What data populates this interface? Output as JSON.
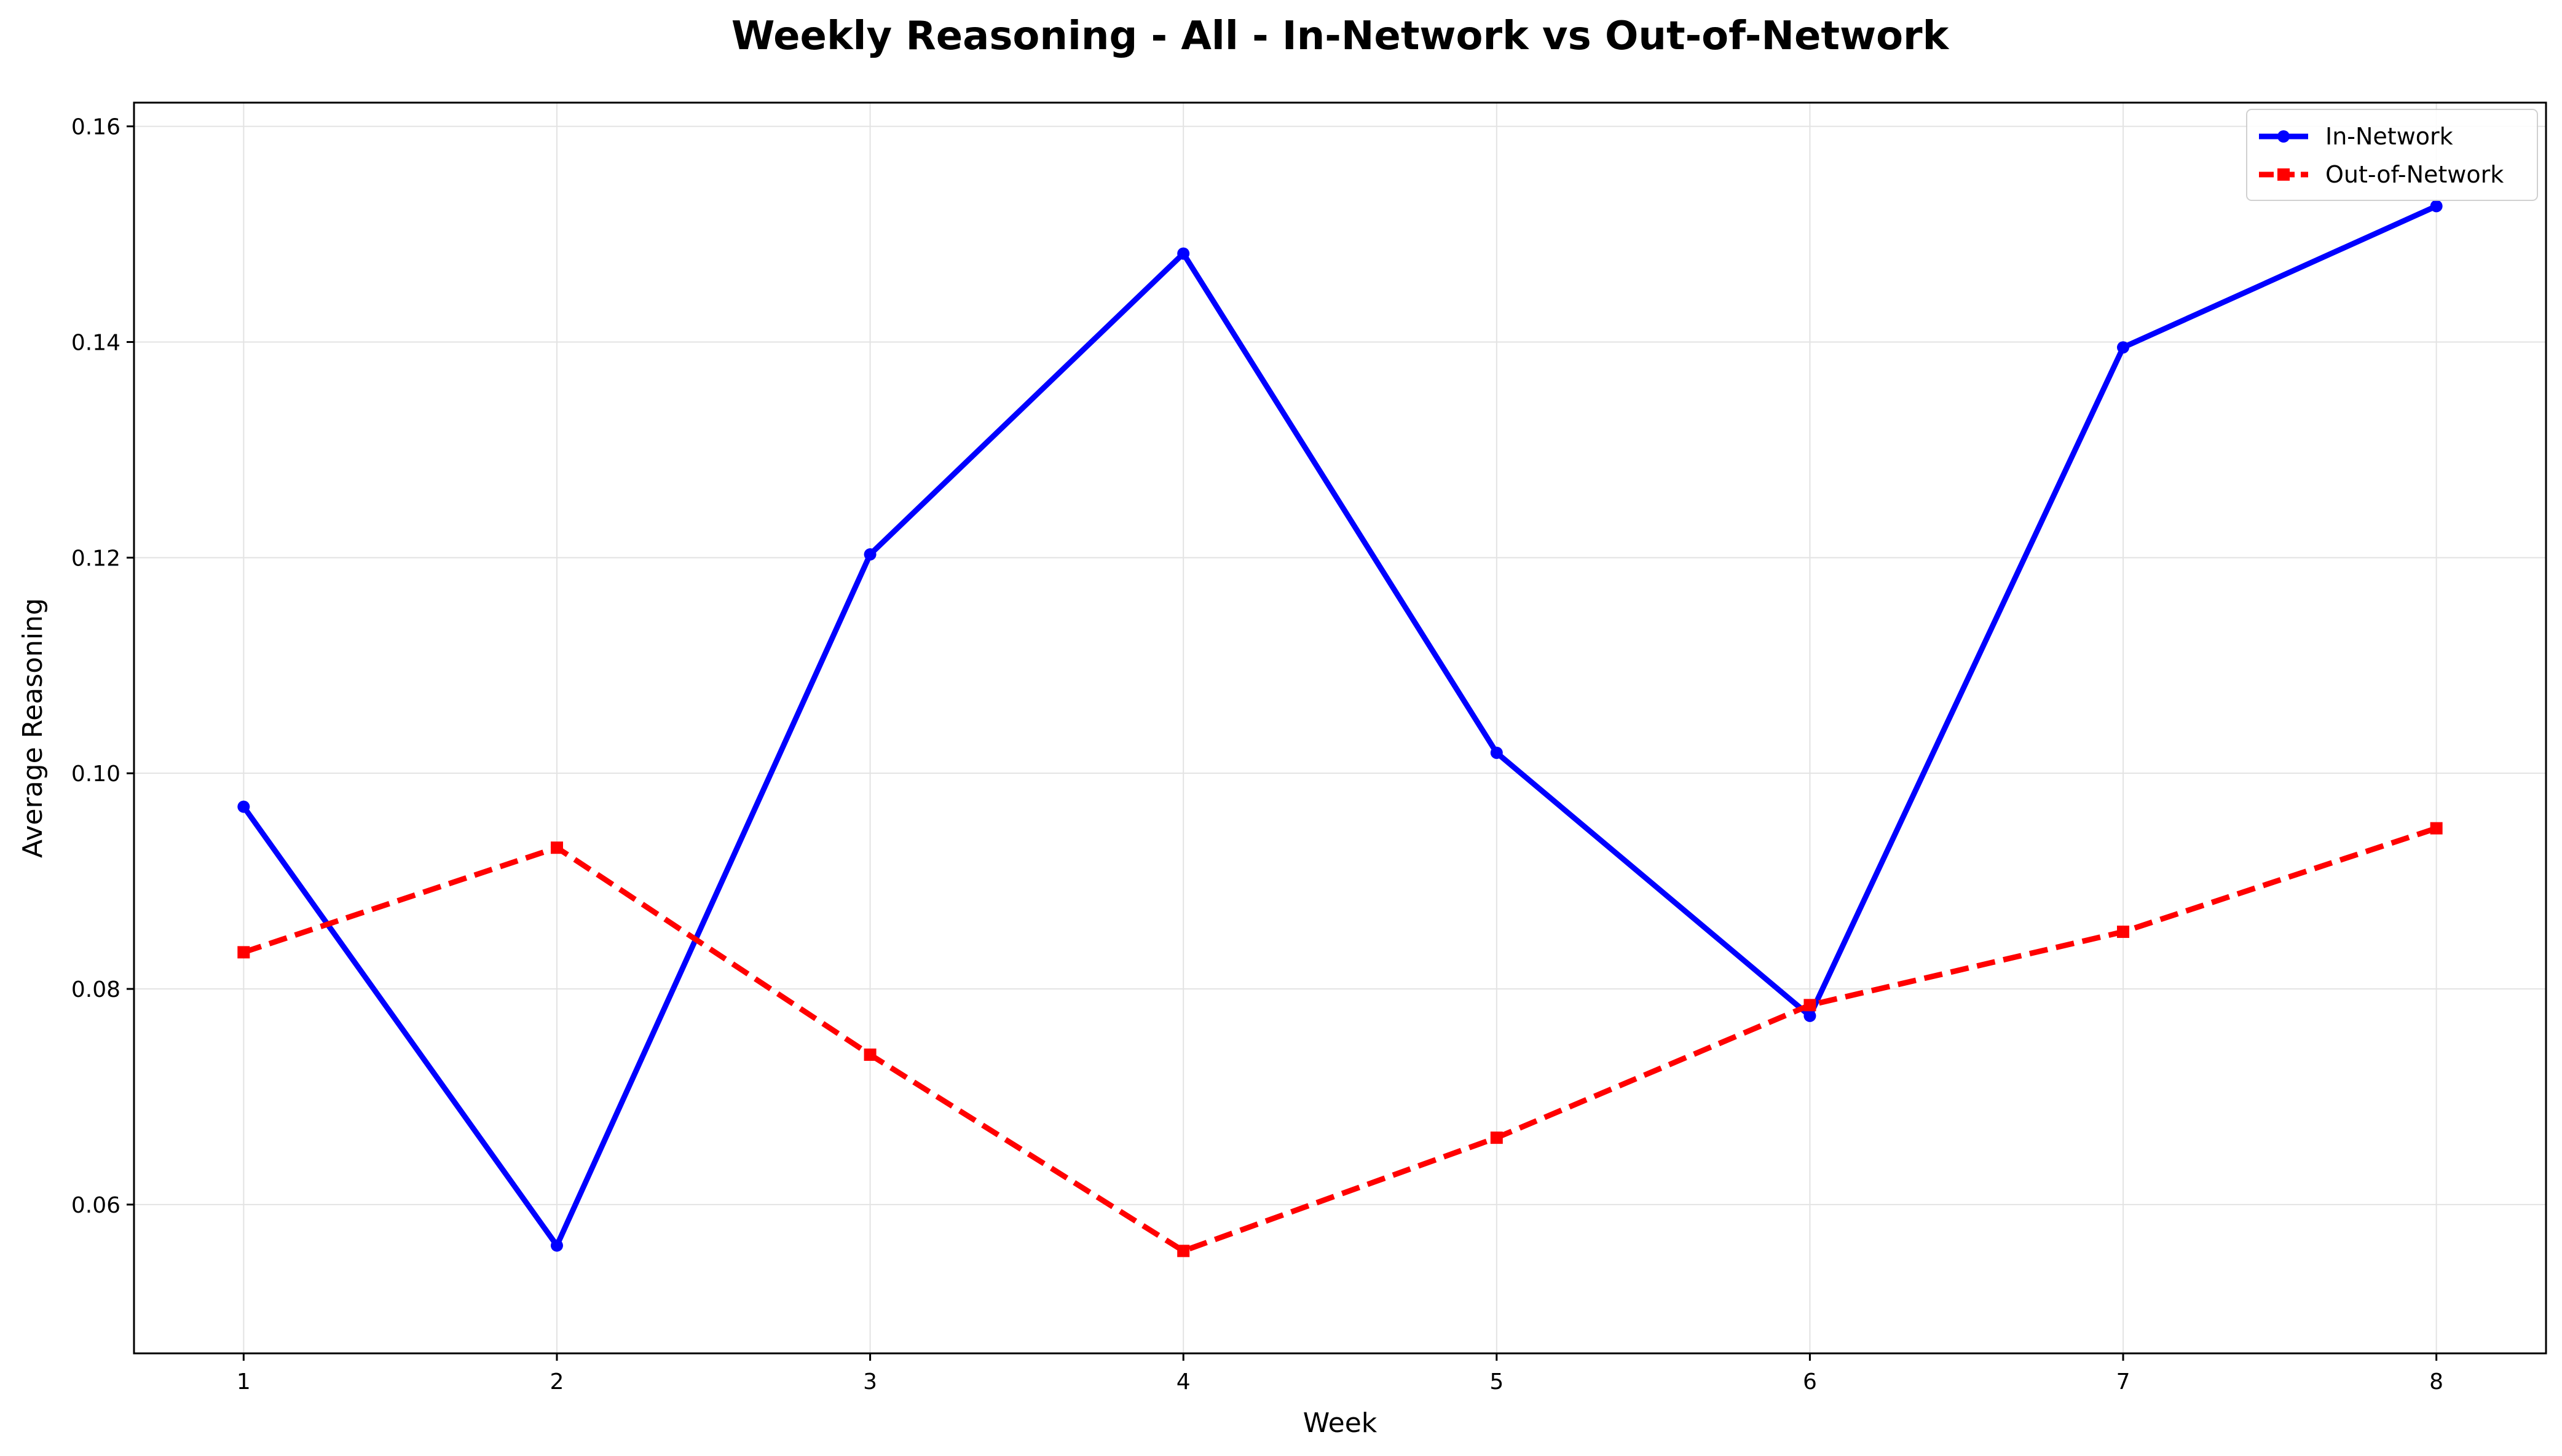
{
  "chart_data": {
    "type": "line",
    "title": "Weekly Reasoning - All - In-Network vs Out-of-Network",
    "xlabel": "Week",
    "ylabel": "Average Reasoning",
    "x": [
      1,
      2,
      3,
      4,
      5,
      6,
      7,
      8
    ],
    "xlim": [
      0.65,
      8.35
    ],
    "ylim": [
      0.0462,
      0.1622
    ],
    "xticks": [
      1,
      2,
      3,
      4,
      5,
      6,
      7,
      8
    ],
    "yticks": [
      0.06,
      0.08,
      0.1,
      0.12,
      0.14,
      0.16
    ],
    "ytick_labels": [
      "0.06",
      "0.08",
      "0.10",
      "0.12",
      "0.14",
      "0.16"
    ],
    "xtick_labels": [
      "1",
      "2",
      "3",
      "4",
      "5",
      "6",
      "7",
      "8"
    ],
    "grid": true,
    "legend_position": "top-right",
    "series": [
      {
        "name": "In-Network",
        "color": "#0000ff",
        "line_style": "solid",
        "marker": "circle",
        "values": [
          0.0969,
          0.0562,
          0.1203,
          0.1482,
          0.1019,
          0.0775,
          0.1395,
          0.1526
        ]
      },
      {
        "name": "Out-of-Network",
        "color": "#ff0000",
        "line_style": "dashed",
        "marker": "square",
        "values": [
          0.0834,
          0.0931,
          0.0739,
          0.0557,
          0.0662,
          0.0785,
          0.0853,
          0.0949
        ]
      }
    ]
  }
}
